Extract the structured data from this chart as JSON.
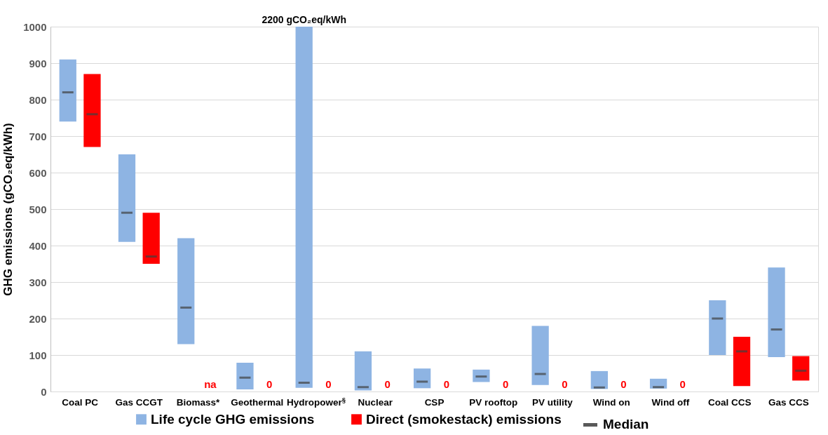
{
  "chart_data": {
    "type": "box",
    "categories": [
      "Coal PC",
      "Gas CCGT",
      "Biomass*",
      "Geothermal",
      "Hydropower$^{§}$",
      "Nuclear",
      "CSP",
      "PV rooftop",
      "PV utility",
      "Wind on",
      "Wind off",
      "Coal CCS",
      "Gas CCS"
    ],
    "ylabel": "GHG emissions (gCO₂eq/kWh)",
    "ylim": [
      0,
      1000
    ],
    "yticks": [
      0,
      100,
      200,
      300,
      400,
      500,
      600,
      700,
      800,
      900,
      1000
    ],
    "grid": "y",
    "legend": "bottom",
    "series": [
      {
        "name": "Life cycle GHG emissions",
        "color": "#8eb4e3",
        "boxes": [
          {
            "low": 740,
            "q1": 740,
            "median": 820,
            "q3": 910,
            "high": 910
          },
          {
            "low": 410,
            "q1": 410,
            "median": 490,
            "q3": 650,
            "high": 650
          },
          {
            "low": 130,
            "q1": 130,
            "median": 230,
            "q3": 420,
            "high": 420
          },
          {
            "low": 6,
            "q1": 6,
            "median": 38,
            "q3": 79,
            "high": 79
          },
          {
            "low": 10,
            "q1": 10,
            "median": 24,
            "q3": 1000,
            "high": 1000
          },
          {
            "low": 3,
            "q1": 3,
            "median": 12,
            "q3": 110,
            "high": 110
          },
          {
            "low": 9,
            "q1": 9,
            "median": 27,
            "q3": 63,
            "high": 63
          },
          {
            "low": 26,
            "q1": 26,
            "median": 41,
            "q3": 60,
            "high": 60
          },
          {
            "low": 18,
            "q1": 18,
            "median": 48,
            "q3": 180,
            "high": 180
          },
          {
            "low": 7,
            "q1": 7,
            "median": 11,
            "q3": 56,
            "high": 56
          },
          {
            "low": 8,
            "q1": 8,
            "median": 12,
            "q3": 35,
            "high": 35
          },
          {
            "low": 100,
            "q1": 100,
            "median": 200,
            "q3": 250,
            "high": 250
          },
          {
            "low": 94,
            "q1": 94,
            "median": 170,
            "q3": 340,
            "high": 340
          }
        ],
        "value_labels": [
          null,
          null,
          null,
          null,
          "2200 gCO₂eq/kWh",
          null,
          null,
          null,
          null,
          null,
          null,
          null,
          null
        ]
      },
      {
        "name": "Direct (smokestack) emissions",
        "color": "#ff0000",
        "boxes": [
          {
            "low": 670,
            "q1": 670,
            "median": 760,
            "q3": 870,
            "high": 870
          },
          {
            "low": 350,
            "q1": 350,
            "median": 370,
            "q3": 490,
            "high": 490
          },
          null,
          null,
          null,
          null,
          null,
          null,
          null,
          null,
          null,
          {
            "low": 15,
            "q1": 15,
            "median": 110,
            "q3": 150,
            "high": 150
          },
          {
            "low": 30,
            "q1": 30,
            "median": 57,
            "q3": 97,
            "high": 97
          }
        ],
        "value_labels": [
          null,
          null,
          "na",
          "0",
          "0",
          "0",
          "0",
          "0",
          "0",
          "0",
          "0",
          null,
          null
        ]
      }
    ],
    "annotations": [
      "Median"
    ]
  }
}
